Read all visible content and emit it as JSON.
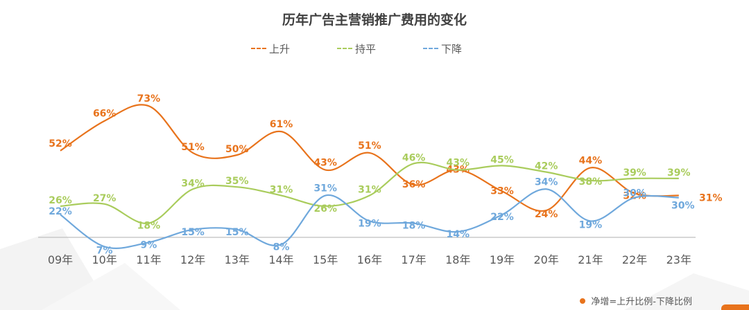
{
  "chart_data": {
    "type": "line",
    "title": "历年广告主营销推广费用的变化",
    "categories": [
      "09年",
      "10年",
      "11年",
      "12年",
      "13年",
      "14年",
      "15年",
      "16年",
      "17年",
      "18年",
      "19年",
      "20年",
      "21年",
      "22年",
      "23年"
    ],
    "series": [
      {
        "name": "上升",
        "color": "#E8731C",
        "values": [
          52,
          66,
          73,
          51,
          50,
          61,
          43,
          51,
          36,
          43,
          33,
          24,
          44,
          32,
          31
        ]
      },
      {
        "name": "持平",
        "color": "#A9CC5C",
        "values": [
          26,
          27,
          18,
          34,
          35,
          31,
          26,
          31,
          46,
          43,
          45,
          42,
          38,
          39,
          39
        ]
      },
      {
        "name": "下降",
        "color": "#6FA8DC",
        "values": [
          22,
          7,
          9,
          15,
          15,
          8,
          31,
          19,
          18,
          14,
          22,
          34,
          19,
          30,
          30
        ]
      }
    ],
    "ylim": [
      0,
      80
    ],
    "value_suffix": "%",
    "legend_position": "top-center",
    "grid": false
  },
  "footnote": "净增=上升比例-下降比例"
}
